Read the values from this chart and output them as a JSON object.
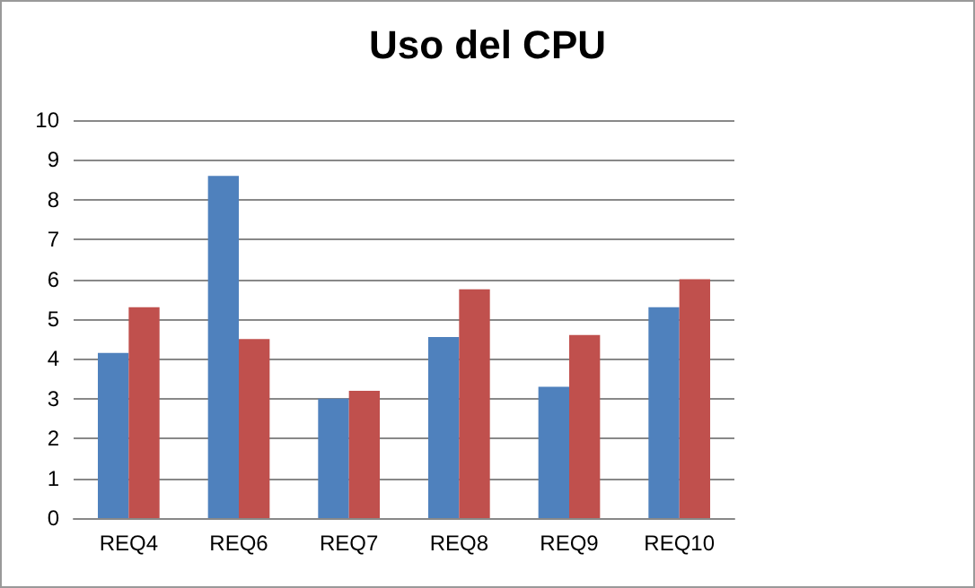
{
  "chart_data": {
    "type": "bar",
    "title": "Uso del CPU",
    "categories": [
      "REQ4",
      "REQ6",
      "REQ7",
      "REQ8",
      "REQ9",
      "REQ10"
    ],
    "series": [
      {
        "color": "#4f81bd",
        "values": [
          4.15,
          8.6,
          3.0,
          4.55,
          3.3,
          5.3
        ]
      },
      {
        "color": "#c0504d",
        "values": [
          5.3,
          4.5,
          3.2,
          5.75,
          4.6,
          6.0
        ]
      }
    ],
    "ylim": [
      0,
      10
    ],
    "yticks": [
      0,
      1,
      2,
      3,
      4,
      5,
      6,
      7,
      8,
      9,
      10
    ],
    "grid": "y"
  }
}
